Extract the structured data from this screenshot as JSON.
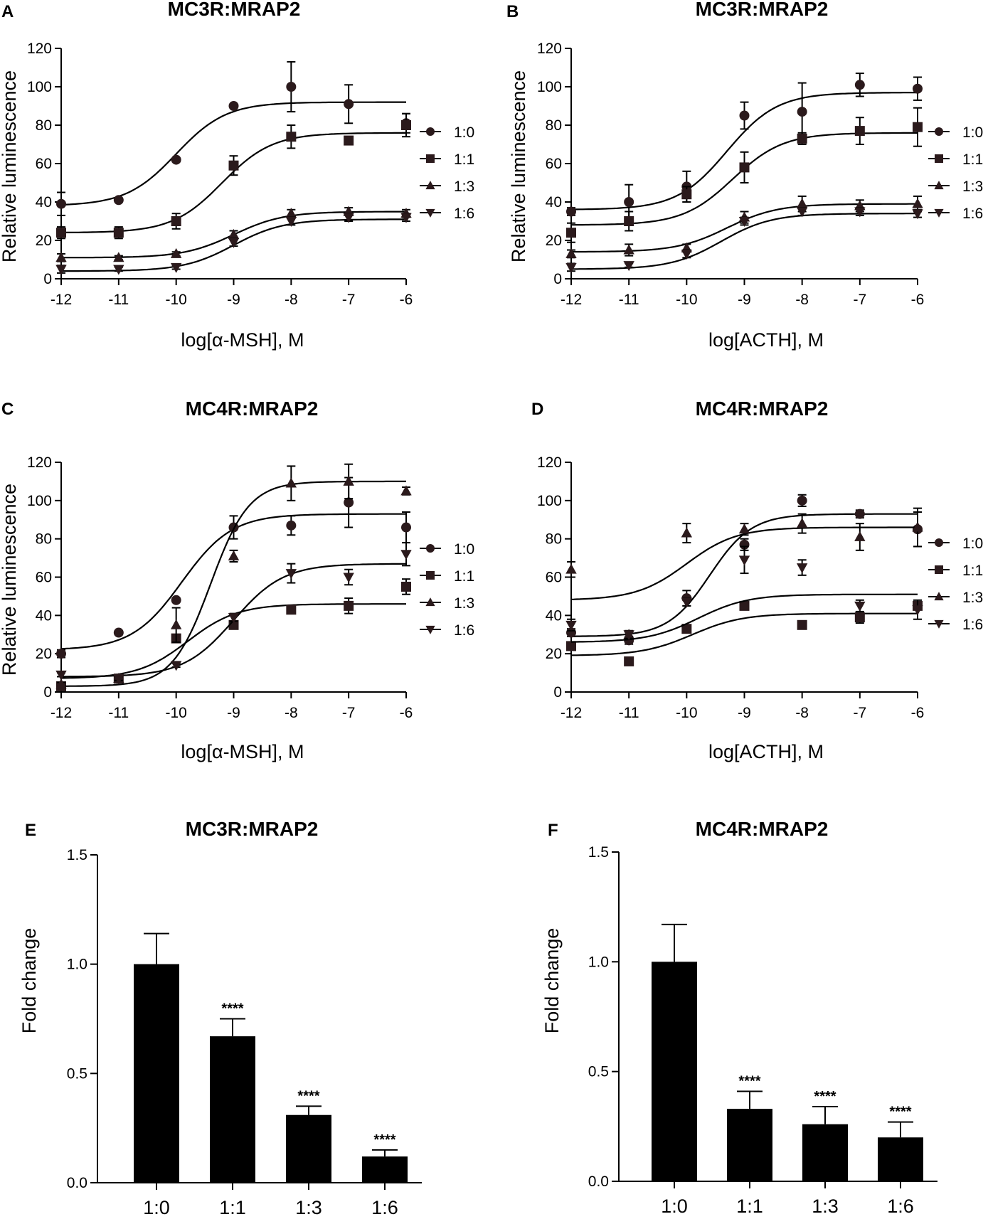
{
  "chart_data": [
    {
      "panel": "A",
      "type": "line",
      "title": "MC3R:MRAP2",
      "xlabel": "log[α-MSH], M",
      "ylabel": "Relative luminescence",
      "x": [
        -12,
        -11,
        -10,
        -9,
        -8,
        -7,
        -6
      ],
      "xticks": [
        "-12",
        "-11",
        "-10",
        "-9",
        "-8",
        "-7",
        "-6"
      ],
      "xlim": [
        -12,
        -6
      ],
      "ylim": [
        0,
        120
      ],
      "yticks": [
        "0",
        "20",
        "40",
        "60",
        "80",
        "100",
        "120"
      ],
      "legend_position": "right",
      "series": [
        {
          "name": "1:0",
          "marker": "circle",
          "values": [
            39,
            41,
            62,
            90,
            100,
            91,
            81
          ],
          "errors": [
            6,
            1,
            1,
            1,
            13,
            10,
            5
          ],
          "fit": {
            "bottom": 38,
            "top": 92,
            "logec50": -10.0,
            "hill": 1
          }
        },
        {
          "name": "1:1",
          "marker": "square",
          "values": [
            24,
            24,
            30,
            59,
            74,
            72,
            80
          ],
          "errors": [
            3,
            3,
            4,
            5,
            6,
            1,
            6
          ],
          "fit": {
            "bottom": 24,
            "top": 76,
            "logec50": -9.2,
            "hill": 1
          }
        },
        {
          "name": "1:3",
          "marker": "triangle-up",
          "values": [
            11,
            11,
            13,
            23,
            34,
            35,
            34
          ],
          "errors": [
            2,
            1,
            1,
            2,
            2,
            2,
            2
          ],
          "fit": {
            "bottom": 11,
            "top": 35,
            "logec50": -9.0,
            "hill": 1
          }
        },
        {
          "name": "1:6",
          "marker": "triangle-down",
          "values": [
            5,
            5,
            6,
            19,
            30,
            32,
            32
          ],
          "errors": [
            2,
            1,
            1,
            2,
            2,
            2,
            2
          ],
          "fit": {
            "bottom": 4,
            "top": 31,
            "logec50": -9.0,
            "hill": 1
          }
        }
      ]
    },
    {
      "panel": "B",
      "type": "line",
      "title": "MC3R:MRAP2",
      "xlabel": "log[ACTH], M",
      "ylabel": "Relative luminescence",
      "x": [
        -12,
        -11,
        -10,
        -9,
        -8,
        -7,
        -6
      ],
      "xticks": [
        "-12",
        "-11",
        "-10",
        "-9",
        "-8",
        "-7",
        "-6"
      ],
      "xlim": [
        -12,
        -6
      ],
      "ylim": [
        0,
        120
      ],
      "yticks": [
        "0",
        "20",
        "40",
        "60",
        "80",
        "100",
        "120"
      ],
      "legend_position": "right",
      "series": [
        {
          "name": "1:0",
          "marker": "circle",
          "values": [
            35,
            40,
            48,
            85,
            87,
            101,
            99
          ],
          "errors": [
            2,
            9,
            8,
            7,
            15,
            6,
            6
          ],
          "fit": {
            "bottom": 36,
            "top": 97,
            "logec50": -9.3,
            "hill": 1
          }
        },
        {
          "name": "1:1",
          "marker": "square",
          "values": [
            24,
            30,
            44,
            58,
            73,
            77,
            79
          ],
          "errors": [
            5,
            5,
            4,
            8,
            3,
            7,
            10
          ],
          "fit": {
            "bottom": 28,
            "top": 76,
            "logec50": -9.2,
            "hill": 1
          }
        },
        {
          "name": "1:3",
          "marker": "triangle-up",
          "values": [
            13,
            15,
            16,
            32,
            39,
            38,
            39
          ],
          "errors": [
            2,
            3,
            2,
            3,
            4,
            3,
            4
          ],
          "fit": {
            "bottom": 14,
            "top": 39,
            "logec50": -9.3,
            "hill": 1
          }
        },
        {
          "name": "1:6",
          "marker": "triangle-down",
          "values": [
            6,
            7,
            13,
            30,
            35,
            35,
            34
          ],
          "errors": [
            2,
            1,
            2,
            2,
            2,
            2,
            2
          ],
          "fit": {
            "bottom": 5,
            "top": 34,
            "logec50": -9.4,
            "hill": 1
          }
        }
      ]
    },
    {
      "panel": "C",
      "type": "line",
      "title": "MC4R:MRAP2",
      "xlabel": "log[α-MSH], M",
      "ylabel": "Relative luminescence",
      "x": [
        -12,
        -11,
        -10,
        -9,
        -8,
        -7,
        -6
      ],
      "xticks": [
        "-12",
        "-11",
        "-10",
        "-9",
        "-8",
        "-7",
        "-6"
      ],
      "xlim": [
        -12,
        -6
      ],
      "ylim": [
        0,
        120
      ],
      "yticks": [
        "0",
        "20",
        "40",
        "60",
        "80",
        "100",
        "120"
      ],
      "legend_position": "right",
      "series": [
        {
          "name": "1:0",
          "marker": "circle",
          "values": [
            20,
            31,
            48,
            86,
            87,
            99,
            86
          ],
          "errors": [
            2,
            1,
            1,
            6,
            5,
            13,
            8
          ],
          "fit": {
            "bottom": 22,
            "top": 93,
            "logec50": -9.9,
            "hill": 1
          }
        },
        {
          "name": "1:1",
          "marker": "square",
          "values": [
            3,
            7,
            28,
            35,
            43,
            45,
            55
          ],
          "errors": [
            1,
            1,
            2,
            2,
            1,
            4,
            4
          ],
          "fit": {
            "bottom": 7,
            "top": 46,
            "logec50": -9.8,
            "hill": 1
          }
        },
        {
          "name": "1:3",
          "marker": "triangle-up",
          "values": [
            4,
            7,
            35,
            71,
            109,
            110,
            105
          ],
          "errors": [
            1,
            1,
            9,
            3,
            9,
            9,
            2
          ],
          "fit": {
            "bottom": 3,
            "top": 110,
            "logec50": -9.4,
            "hill": 1.3
          }
        },
        {
          "name": "1:6",
          "marker": "triangle-down",
          "values": [
            9,
            7,
            14,
            39,
            62,
            60,
            72
          ],
          "errors": [
            1,
            1,
            1,
            2,
            5,
            4,
            6
          ],
          "fit": {
            "bottom": 8,
            "top": 67,
            "logec50": -9.0,
            "hill": 1
          }
        }
      ]
    },
    {
      "panel": "D",
      "type": "line",
      "title": "MC4R:MRAP2",
      "xlabel": "log[ACTH], M",
      "ylabel": "Relative luminescence",
      "x": [
        -12,
        -11,
        -10,
        -9,
        -8,
        -7,
        -6
      ],
      "xticks": [
        "-12",
        "-11",
        "-10",
        "-9",
        "-8",
        "-7",
        "-6"
      ],
      "xlim": [
        -12,
        -6
      ],
      "ylim": [
        0,
        120
      ],
      "yticks": [
        "0",
        "20",
        "40",
        "60",
        "80",
        "100",
        "120"
      ],
      "legend_position": "right",
      "series": [
        {
          "name": "1:0",
          "marker": "circle",
          "values": [
            31,
            27,
            49,
            77,
            100,
            93,
            85
          ],
          "errors": [
            2,
            2,
            4,
            3,
            3,
            2,
            9
          ],
          "fit": {
            "bottom": 29,
            "top": 93,
            "logec50": -9.6,
            "hill": 1.2
          }
        },
        {
          "name": "1:1",
          "marker": "square",
          "values": [
            24,
            16,
            33,
            45,
            35,
            39,
            45
          ],
          "errors": [
            2,
            2,
            1,
            2,
            2,
            3,
            2
          ],
          "fit": {
            "bottom": 19,
            "top": 41,
            "logec50": -9.9,
            "hill": 1
          }
        },
        {
          "name": "1:3",
          "marker": "triangle-up",
          "values": [
            64,
            30,
            83,
            85,
            88,
            81,
            86
          ],
          "errors": [
            4,
            2,
            5,
            3,
            5,
            7,
            10
          ],
          "fit": {
            "bottom": 48,
            "top": 86,
            "logec50": -10.0,
            "hill": 1
          }
        },
        {
          "name": "1:6",
          "marker": "triangle-down",
          "values": [
            35,
            30,
            47,
            69,
            65,
            45,
            43
          ],
          "errors": [
            3,
            2,
            2,
            7,
            4,
            3,
            5
          ],
          "fit": {
            "bottom": 26,
            "top": 51,
            "logec50": -9.8,
            "hill": 1
          }
        }
      ]
    },
    {
      "panel": "E",
      "type": "bar",
      "title": "MC3R:MRAP2",
      "xlabel": "",
      "ylabel": "Fold change",
      "categories": [
        "1:0",
        "1:1",
        "1:3",
        "1:6"
      ],
      "values": [
        1.0,
        0.67,
        0.31,
        0.12
      ],
      "errors": [
        0.14,
        0.08,
        0.04,
        0.03
      ],
      "significance": [
        "",
        "****",
        "****",
        "****"
      ],
      "ylim": [
        0,
        1.5
      ],
      "yticks": [
        "0.0",
        "0.5",
        "1.0",
        "1.5"
      ]
    },
    {
      "panel": "F",
      "type": "bar",
      "title": "MC4R:MRAP2",
      "xlabel": "",
      "ylabel": "Fold change",
      "categories": [
        "1:0",
        "1:1",
        "1:3",
        "1:6"
      ],
      "values": [
        1.0,
        0.33,
        0.26,
        0.2
      ],
      "errors": [
        0.17,
        0.08,
        0.08,
        0.07
      ],
      "significance": [
        "",
        "****",
        "****",
        "****"
      ],
      "ylim": [
        0,
        1.5
      ],
      "yticks": [
        "0.0",
        "0.5",
        "1.0",
        "1.5"
      ]
    }
  ]
}
